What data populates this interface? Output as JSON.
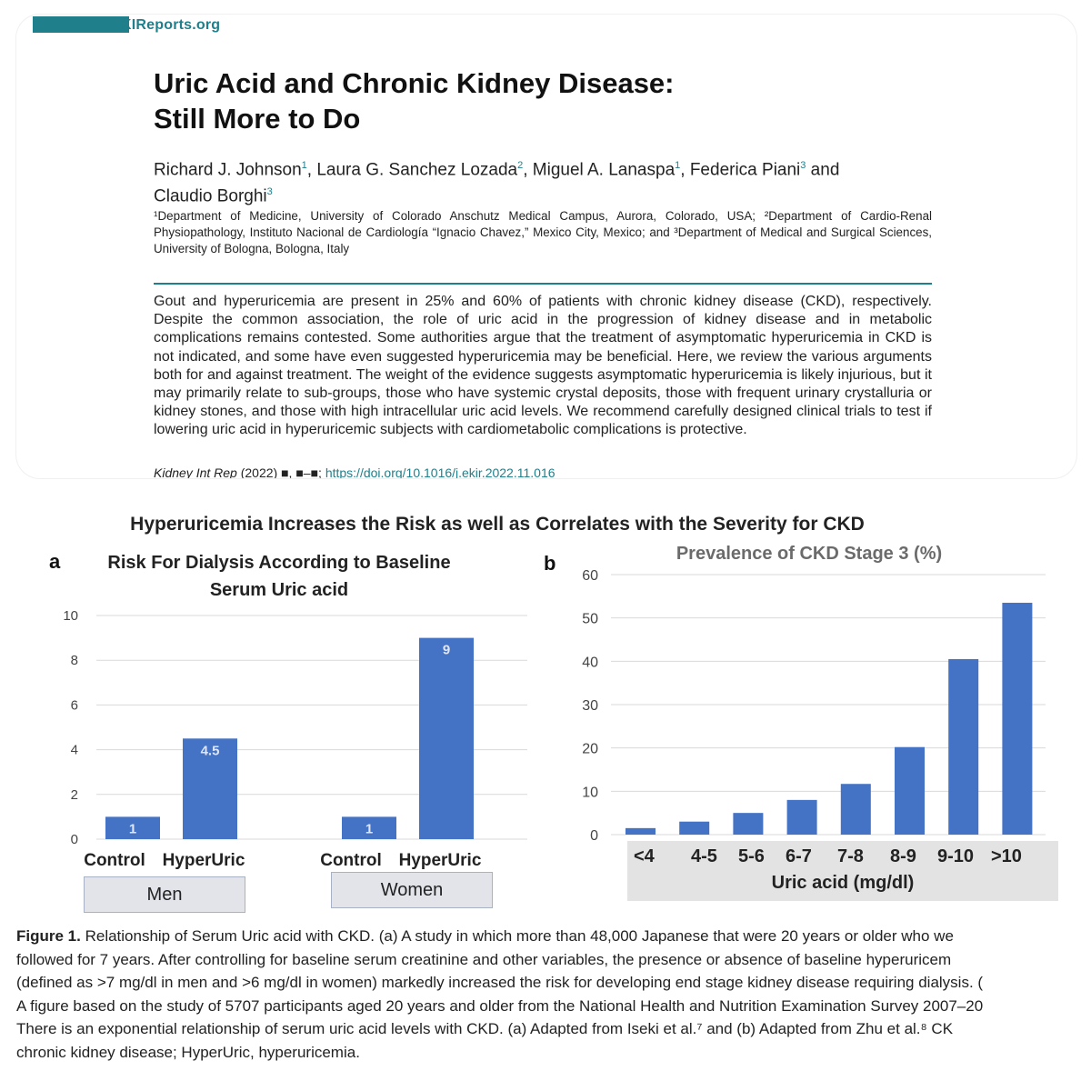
{
  "header": {
    "journal": "KIReports.org",
    "title_line1": "Uric Acid and Chronic Kidney Disease:",
    "title_line2": "Still More to Do",
    "authors": [
      {
        "name": "Richard J. Johnson",
        "sup": "1",
        "sep": ", "
      },
      {
        "name": "Laura G. Sanchez Lozada",
        "sup": "2",
        "sep": ", "
      },
      {
        "name": "Miguel A. Lanaspa",
        "sup": "1",
        "sep": ", "
      },
      {
        "name": "Federica Piani",
        "sup": "3",
        "sep": " and "
      },
      {
        "name": "Claudio Borghi",
        "sup": "3",
        "sep": ""
      }
    ],
    "affiliations": "¹Department of Medicine, University of Colorado Anschutz Medical Campus, Aurora, Colorado, USA; ²Department of Cardio-Renal Physiopathology, Instituto Nacional de Cardiología “Ignacio Chavez,” Mexico City, Mexico; and ³Department of Medical and Surgical Sciences, University of Bologna, Bologna, Italy",
    "abstract": "Gout and hyperuricemia are present in 25% and 60% of patients with chronic kidney disease (CKD), respectively. Despite the common association, the role of uric acid in the progression of kidney disease and in metabolic complications remains contested. Some authorities argue that the treatment of asymptomatic hyperuricemia in CKD is not indicated, and some have even suggested hyperuricemia may be beneficial. Here, we review the various arguments both for and against treatment. The weight of the evidence suggests asymptomatic hyperuricemia is likely injurious, but it may primarily relate to sub-groups, those who have systemic crystal deposits, those with frequent urinary crystalluria or kidney stones, and those with high intracellular uric acid levels. We recommend carefully designed clinical trials to test if lowering uric acid in hyperuricemic subjects with cardiometabolic complications is protective.",
    "citation_journal": "Kidney Int Rep",
    "citation_rest": " (2022) ■, ■–■; ",
    "doi": "https://doi.org/10.1016/j.ekir.2022.11.016"
  },
  "figure": {
    "title": "Hyperuricemia Increases the Risk as well as Correlates with the Severity for CKD",
    "caption_lines": [
      {
        "bold": "Figure 1.",
        "text": " Relationship of Serum Uric acid with CKD. (a) A study in which more than 48,000 Japanese that were 20 years or older who we"
      },
      {
        "bold": "",
        "text": "followed for 7 years. After controlling for baseline serum creatinine and other variables, the presence or absence of baseline hyperuricem"
      },
      {
        "bold": "",
        "text": "(defined as >7 mg/dl in men and >6 mg/dl in women) markedly increased the risk for developing end stage kidney disease requiring dialysis. ("
      },
      {
        "bold": "",
        "text": "A figure based on the study of 5707 participants aged 20 years and older from the National Health and Nutrition Examination Survey 2007–20"
      },
      {
        "bold": "",
        "text": "There is an exponential relationship of serum uric acid levels with CKD. (a) Adapted from Iseki et al.⁷ and (b) Adapted from Zhu et al.⁸ CK"
      },
      {
        "bold": "",
        "text": "chronic kidney disease; HyperUric, hyperuricemia."
      }
    ]
  },
  "colors": {
    "bar": "#4472c4",
    "teal": "#1f7f8b",
    "grid": "#d9d9d9"
  },
  "chart_data": [
    {
      "type": "bar",
      "panel": "a",
      "title_line1": "Risk For Dialysis According to Baseline",
      "title_line2": "Serum Uric acid",
      "categories": [
        "Control",
        "HyperUric",
        "Control",
        "HyperUric"
      ],
      "groups": [
        "Men",
        "Women"
      ],
      "values": [
        1,
        4.5,
        1,
        9
      ],
      "data_labels": [
        "1",
        "4.5",
        "1",
        "9"
      ],
      "ylim": [
        0,
        10
      ],
      "yticks": [
        0,
        2,
        4,
        6,
        8,
        10
      ],
      "grid": true
    },
    {
      "type": "bar",
      "panel": "b",
      "title": "Prevalence of CKD Stage 3 (%)",
      "xlabel": "Uric acid (mg/dl)",
      "categories": [
        "<4",
        "4-5",
        "5-6",
        "6-7",
        "7-8",
        "8-9",
        "9-10",
        ">10"
      ],
      "values": [
        1.5,
        3,
        5,
        8,
        11.7,
        20.2,
        40.5,
        53.5
      ],
      "ylim": [
        0,
        60
      ],
      "yticks": [
        0,
        10,
        20,
        30,
        40,
        50,
        60
      ],
      "grid": true
    }
  ]
}
